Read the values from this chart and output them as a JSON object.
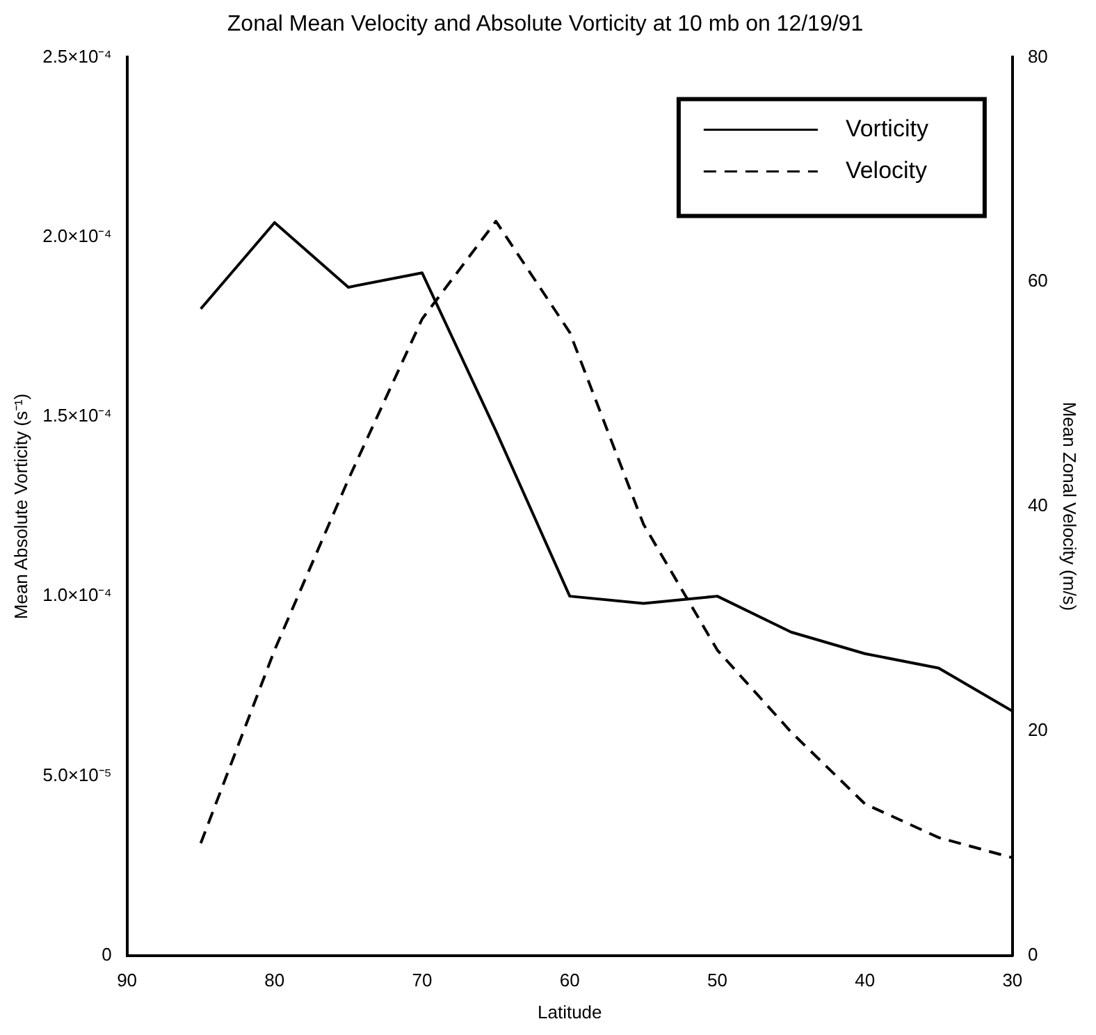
{
  "chart_data": {
    "type": "line",
    "title": "Zonal Mean Velocity and Absolute Vorticity at 10 mb on 12/19/91",
    "xlabel": "Latitude",
    "ylabel": "Mean Absolute Vorticity (s⁻¹)",
    "y2label": "Mean Zonal Velocity (m/s)",
    "x": [
      85,
      80,
      75,
      70,
      65,
      60,
      55,
      50,
      45,
      40,
      35,
      30
    ],
    "series": [
      {
        "name": "Vorticity",
        "color": "#000000",
        "line_style": "solid",
        "values": [
          0.00018,
          0.000204,
          0.000186,
          0.00019,
          0.000146,
          0.0001,
          9.8e-05,
          0.0001,
          9e-05,
          8.4e-05,
          8e-05,
          6.8e-05
        ]
      },
      {
        "name": "Velocity",
        "color": "#000000",
        "line_style": "dashed",
        "axis": "y2",
        "values": [
          10,
          27.2,
          42.4,
          56.7,
          65.4,
          55.5,
          38.4,
          27.2,
          19.9,
          13.5,
          10.5,
          8.7
        ]
      }
    ],
    "xlim": [
      90,
      30
    ],
    "xticks": [
      90,
      80,
      70,
      60,
      50,
      40,
      30
    ],
    "ylim": [
      0,
      0.00025
    ],
    "yticks": [
      0,
      {
        "value": 5e-05,
        "label": "5.0×10⁻⁵"
      },
      {
        "value": 0.0001,
        "label": "1.0×10⁻⁴"
      },
      {
        "value": 0.00015,
        "label": "1.5×10⁻⁴"
      },
      {
        "value": 0.0002,
        "label": "2.0×10⁻⁴"
      },
      {
        "value": 0.00025,
        "label": "2.5×10⁻⁴"
      }
    ],
    "y2lim": [
      0,
      80
    ],
    "y2ticks": [
      0,
      20,
      40,
      60,
      80
    ],
    "grid": false,
    "legend": "top right",
    "marker": "none"
  }
}
